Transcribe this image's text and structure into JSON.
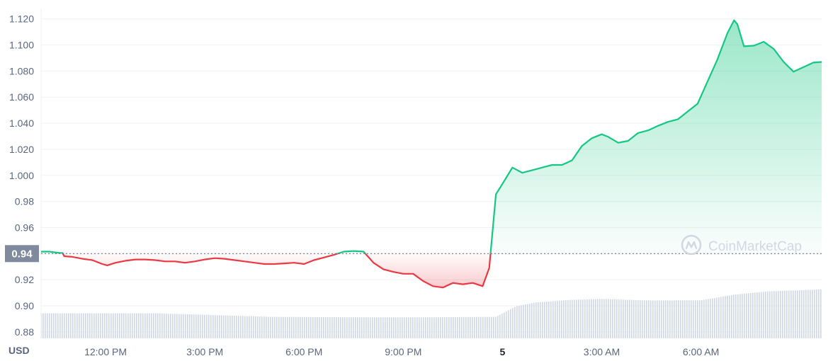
{
  "chart_data": {
    "type": "line",
    "title": "",
    "xlabel": "",
    "ylabel": "",
    "currency_label": "USD",
    "watermark": "CoinMarketCap",
    "reference_price": 0.94,
    "reference_label": "0.94",
    "ylim": [
      0.875,
      1.128
    ],
    "y_ticks": [
      "1.120",
      "1.100",
      "1.080",
      "1.060",
      "1.040",
      "1.020",
      "1.000",
      "0.98",
      "0.96",
      "0.94",
      "0.92",
      "0.90",
      "0.88"
    ],
    "y_tick_values": [
      1.12,
      1.1,
      1.08,
      1.06,
      1.04,
      1.02,
      1.0,
      0.98,
      0.96,
      0.94,
      0.92,
      0.9,
      0.88
    ],
    "x_ticks": [
      {
        "label": "12:00 PM",
        "hour": 12,
        "bold": false
      },
      {
        "label": "3:00 PM",
        "hour": 15,
        "bold": false
      },
      {
        "label": "6:00 PM",
        "hour": 18,
        "bold": false
      },
      {
        "label": "9:00 PM",
        "hour": 21,
        "bold": false
      },
      {
        "label": "5",
        "hour": 24,
        "bold": true
      },
      {
        "label": "3:00 AM",
        "hour": 27,
        "bold": false
      },
      {
        "label": "6:00 AM",
        "hour": 30,
        "bold": false
      }
    ],
    "x_range_hours": [
      10.05,
      33.65
    ],
    "colors": {
      "up": "#16c784",
      "down": "#ea3943",
      "grid": "#eff2f5",
      "volume": "#cfd6e4",
      "axis": "#58667e"
    },
    "series": [
      {
        "x": [
          10.05,
          10.3,
          10.6,
          10.7,
          10.75,
          11.0,
          11.3,
          11.6,
          11.9,
          12.05,
          12.3,
          12.6,
          12.9,
          13.2,
          13.5,
          13.8,
          14.1,
          14.4,
          14.7,
          15.0,
          15.3,
          15.6,
          15.9,
          16.2,
          16.5,
          16.8,
          17.1,
          17.4,
          17.7,
          18.0,
          18.3,
          18.6,
          18.9,
          19.2,
          19.5,
          19.8,
          20.1,
          20.4,
          20.7,
          21.0,
          21.3,
          21.6,
          21.9,
          22.2,
          22.5,
          22.8,
          23.1,
          23.4,
          23.6,
          23.8,
          24.0,
          24.3,
          24.6,
          24.9,
          25.2,
          25.5,
          25.8,
          26.1,
          26.4,
          26.7,
          27.0,
          27.2,
          27.5,
          27.8,
          28.1,
          28.4,
          28.7,
          29.0,
          29.3,
          29.6,
          29.9,
          30.2,
          30.5,
          30.8,
          31.0,
          31.1,
          31.3,
          31.6,
          31.9,
          32.2,
          32.5,
          32.8,
          33.1,
          33.4,
          33.65
        ],
        "y": [
          0.9415,
          0.9415,
          0.9405,
          0.9405,
          0.938,
          0.9375,
          0.936,
          0.935,
          0.932,
          0.931,
          0.933,
          0.9345,
          0.9355,
          0.9355,
          0.935,
          0.934,
          0.934,
          0.933,
          0.934,
          0.9355,
          0.9365,
          0.936,
          0.935,
          0.934,
          0.933,
          0.932,
          0.932,
          0.9325,
          0.933,
          0.932,
          0.935,
          0.937,
          0.939,
          0.9415,
          0.942,
          0.9415,
          0.933,
          0.928,
          0.926,
          0.9245,
          0.9245,
          0.919,
          0.915,
          0.914,
          0.9175,
          0.9165,
          0.9175,
          0.915,
          0.929,
          0.9855,
          0.9935,
          1.006,
          1.002,
          1.004,
          1.006,
          1.008,
          1.008,
          1.0115,
          1.0225,
          1.0285,
          1.0315,
          1.0295,
          1.025,
          1.0265,
          1.0325,
          1.0345,
          1.038,
          1.041,
          1.043,
          1.049,
          1.055,
          1.072,
          1.089,
          1.109,
          1.119,
          1.116,
          1.099,
          1.0995,
          1.1025,
          1.097,
          1.087,
          1.0795,
          1.083,
          1.0865,
          1.087
        ]
      }
    ],
    "volume": {
      "x": [
        10.05,
        13.5,
        17.0,
        21.0,
        23.8,
        24.4,
        25.0,
        26.0,
        27.0,
        28.5,
        30.0,
        31.0,
        32.0,
        33.65
      ],
      "y": [
        0.8942,
        0.8942,
        0.8915,
        0.891,
        0.8915,
        0.8995,
        0.9025,
        0.9045,
        0.9052,
        0.904,
        0.9042,
        0.9085,
        0.911,
        0.9125
      ]
    }
  }
}
